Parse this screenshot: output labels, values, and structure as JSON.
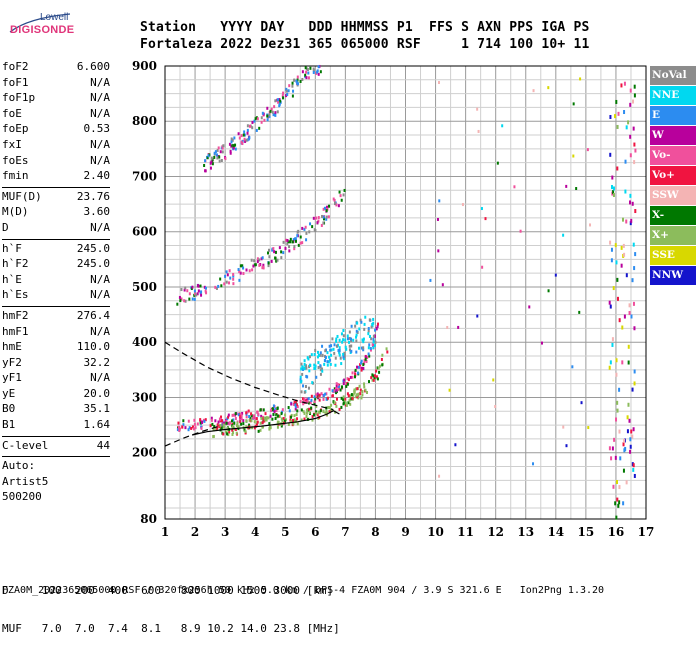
{
  "logo": {
    "line1": "Lowell",
    "line2": "DIGISONDE"
  },
  "header": {
    "line1": "Station   YYYY DAY   DDD HHMMSS P1  FFS S AXN PPS IGA PS",
    "line2": "Fortaleza 2022 Dez31 365 065000 RSF     1 714 100 10+ 11"
  },
  "params": {
    "g1": [
      {
        "k": "foF2",
        "v": "6.600"
      },
      {
        "k": "foF1",
        "v": "N/A"
      },
      {
        "k": "foF1p",
        "v": "N/A"
      },
      {
        "k": "foE",
        "v": "N/A"
      },
      {
        "k": "foEp",
        "v": "0.53"
      },
      {
        "k": "fxI",
        "v": "N/A"
      },
      {
        "k": "foEs",
        "v": "N/A"
      },
      {
        "k": "fmin",
        "v": "2.40"
      }
    ],
    "g2": [
      {
        "k": "MUF(D)",
        "v": "23.76"
      },
      {
        "k": "M(D)",
        "v": "3.60"
      },
      {
        "k": "D",
        "v": "N/A"
      }
    ],
    "g3": [
      {
        "k": "h`F",
        "v": "245.0"
      },
      {
        "k": "h`F2",
        "v": "245.0"
      },
      {
        "k": "h`E",
        "v": "N/A"
      },
      {
        "k": "h`Es",
        "v": "N/A"
      }
    ],
    "g4": [
      {
        "k": "hmF2",
        "v": "276.4"
      },
      {
        "k": "hmF1",
        "v": "N/A"
      },
      {
        "k": "hmE",
        "v": "110.0"
      },
      {
        "k": "yF2",
        "v": "32.2"
      },
      {
        "k": "yF1",
        "v": "N/A"
      },
      {
        "k": "yE",
        "v": "20.0"
      },
      {
        "k": "B0",
        "v": "35.1"
      },
      {
        "k": "B1",
        "v": "1.64"
      }
    ],
    "g5": [
      {
        "k": "C-level",
        "v": "44"
      }
    ],
    "auto": [
      "Auto:",
      "Artist5",
      "500200"
    ]
  },
  "legend": [
    {
      "label": "NoVal",
      "color": "#8c8c8c"
    },
    {
      "label": "NNE",
      "color": "#00d8f0"
    },
    {
      "label": "E",
      "color": "#2c8cf0"
    },
    {
      "label": "W",
      "color": "#b8009c"
    },
    {
      "label": "Vo-",
      "color": "#f0509c"
    },
    {
      "label": "Vo+",
      "color": "#f01440"
    },
    {
      "label": "SSW",
      "color": "#f4b4b4"
    },
    {
      "label": "X-",
      "color": "#007800"
    },
    {
      "label": "X+",
      "color": "#8cbc5c"
    },
    {
      "label": "SSE",
      "color": "#d8d800"
    },
    {
      "label": "NNW",
      "color": "#1414cc"
    }
  ],
  "bottom": {
    "row1": "D     100  200  400  600   800 1000 1500 3000 [km]",
    "row2": "MUF   7.0  7.0  7.4  8.1   8.9 10.2 14.0 23.8 [MHz]"
  },
  "footer": "FZA0M_2022365065000.RSF / 320fx256h 50 kHz 5.0 km / DPS-4 FZA0M 904 / 3.9 S 321.6 E   Ion2Png 1.3.20",
  "chart_data": {
    "type": "scatter",
    "title": "",
    "xlabel": "",
    "ylabel": "",
    "xlim": [
      1,
      17
    ],
    "ylim": [
      80,
      900
    ],
    "xticks": [
      1,
      2,
      3,
      4,
      5,
      6,
      7,
      8,
      9,
      10,
      11,
      12,
      13,
      14,
      15,
      16,
      17
    ],
    "yticks": [
      80,
      200,
      300,
      400,
      500,
      600,
      700,
      800,
      900
    ],
    "grid": true,
    "legend_position": "right",
    "series": [
      {
        "name": "F2 O-trace (1st hop)",
        "color": "#f0509c",
        "x": [
          1.4,
          2.0,
          2.6,
          3.2,
          3.8,
          4.4,
          5.0,
          5.5,
          6.0,
          6.4,
          6.8,
          7.2,
          7.6,
          7.9,
          8.1
        ],
        "y": [
          248,
          250,
          255,
          260,
          266,
          272,
          280,
          288,
          296,
          305,
          318,
          335,
          360,
          390,
          430
        ]
      },
      {
        "name": "F2 X-trace (1st hop)",
        "color": "#8cbc5c",
        "x": [
          2.6,
          3.4,
          4.2,
          5.0,
          5.8,
          6.4,
          7.0,
          7.6,
          8.1,
          8.4
        ],
        "y": [
          240,
          244,
          250,
          258,
          268,
          278,
          292,
          312,
          345,
          390
        ]
      },
      {
        "name": "F2 2nd hop",
        "color": "#f0509c",
        "x": [
          1.4,
          2.2,
          3.0,
          3.8,
          4.6,
          5.4,
          6.0,
          6.6,
          7.0
        ],
        "y": [
          478,
          495,
          512,
          532,
          556,
          585,
          612,
          645,
          672
        ]
      },
      {
        "name": "F2 3rd hop",
        "color": "#f0509c",
        "x": [
          2.3,
          3.0,
          3.6,
          4.2,
          4.8,
          5.3,
          5.8,
          6.2
        ],
        "y": [
          720,
          745,
          770,
          800,
          830,
          860,
          890,
          900
        ]
      },
      {
        "name": "Oblique echoes",
        "color": "#00d8f0",
        "x": [
          5.5,
          6.0,
          6.5,
          7.0,
          7.5,
          8.0
        ],
        "y": [
          330,
          355,
          375,
          395,
          412,
          420
        ]
      }
    ],
    "profile_curves": [
      {
        "name": "dashed profile",
        "style": "dashed",
        "x": [
          1.0,
          1.6,
          2.4,
          3.2,
          4.0,
          4.8,
          5.4,
          6.0,
          6.6
        ],
        "y": [
          400,
          380,
          355,
          335,
          318,
          304,
          294,
          286,
          278
        ]
      },
      {
        "name": "dashed lower",
        "style": "dashed",
        "x": [
          1.0,
          1.6,
          2.2,
          2.8
        ],
        "y": [
          212,
          226,
          238,
          248
        ]
      },
      {
        "name": "solid profile",
        "style": "solid",
        "x": [
          1.9,
          2.4,
          3.0,
          3.6,
          4.2,
          4.8,
          5.4,
          6.0,
          6.4,
          6.6,
          6.8
        ],
        "y": [
          232,
          238,
          242,
          245,
          248,
          252,
          256,
          262,
          270,
          276,
          270
        ]
      }
    ],
    "vertical_band_freq": 16.2,
    "bottom_table": {
      "D_km": [
        100,
        200,
        400,
        600,
        800,
        1000,
        1500,
        3000
      ],
      "MUF_MHz": [
        7.0,
        7.0,
        7.4,
        8.1,
        8.9,
        10.2,
        14.0,
        23.8
      ]
    }
  }
}
